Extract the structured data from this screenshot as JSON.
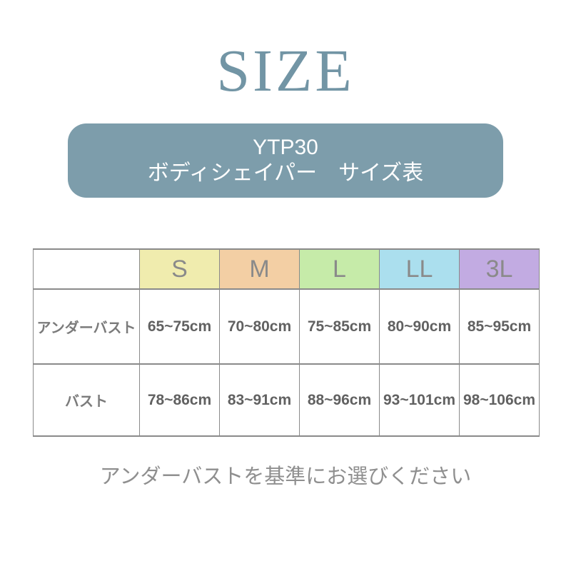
{
  "title": "SIZE",
  "banner": {
    "bg": "#7d9dab",
    "line1": "YTP30",
    "line2": "ボディシェイパー　サイズ表"
  },
  "table": {
    "sizes": [
      {
        "label": "S",
        "color": "#f0ecae"
      },
      {
        "label": "M",
        "color": "#f3cfa4"
      },
      {
        "label": "L",
        "color": "#c6eba9"
      },
      {
        "label": "LL",
        "color": "#abdfee"
      },
      {
        "label": "3L",
        "color": "#c2abe2"
      }
    ],
    "rows": [
      {
        "label": "アンダーバスト",
        "values": [
          "65~75cm",
          "70~80cm",
          "75~85cm",
          "80~90cm",
          "85~95cm"
        ]
      },
      {
        "label": "バスト",
        "values": [
          "78~86cm",
          "83~91cm",
          "88~96cm",
          "93~101cm",
          "98~106cm"
        ]
      }
    ]
  },
  "note": "アンダーバストを基準にお選びください",
  "colors": {
    "title_text": "#7295a5",
    "banner_bg": "#7d9dab",
    "banner_text": "#ffffff",
    "table_border": "#8a8a8a",
    "size_letter_text": "#8a8a8a",
    "row_label_text": "#7b7b7b",
    "value_text": "#616161",
    "note_text": "#8f8f8f"
  },
  "chart_data": {
    "type": "table",
    "title": "YTP30 ボディシェイパー　サイズ表",
    "columns": [
      "",
      "S",
      "M",
      "L",
      "LL",
      "3L"
    ],
    "rows": [
      [
        "アンダーバスト",
        "65~75cm",
        "70~80cm",
        "75~85cm",
        "80~90cm",
        "85~95cm"
      ],
      [
        "バスト",
        "78~86cm",
        "83~91cm",
        "88~96cm",
        "93~101cm",
        "98~106cm"
      ]
    ],
    "note": "アンダーバストを基準にお選びください",
    "header_colors": [
      "#ffffff",
      "#f0ecae",
      "#f3cfa4",
      "#c6eba9",
      "#abdfee",
      "#c2abe2"
    ]
  }
}
